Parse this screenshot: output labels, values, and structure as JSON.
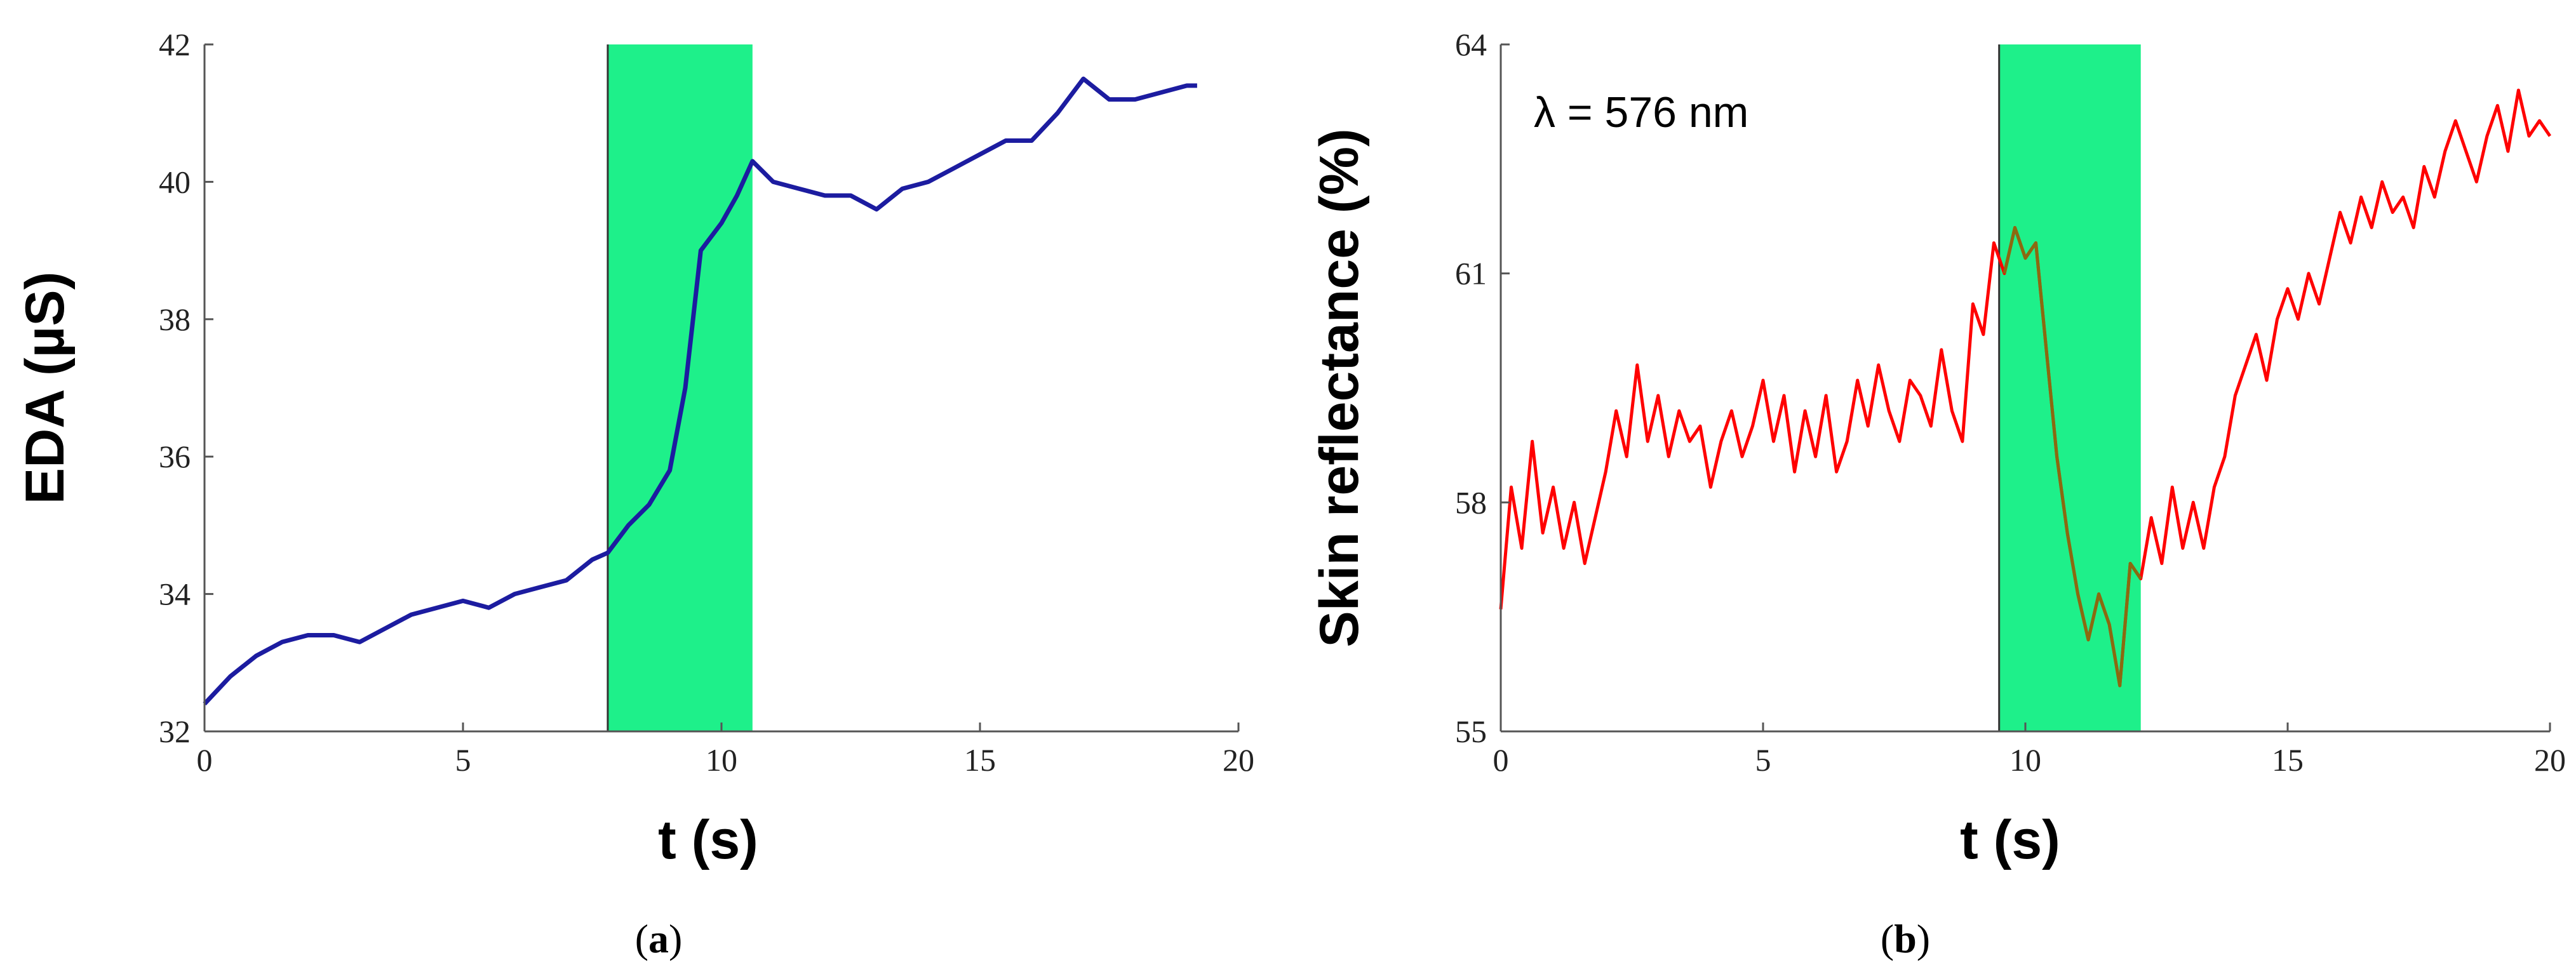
{
  "chart_data": [
    {
      "type": "line",
      "panel_label": "a",
      "xlabel": "t (s)",
      "ylabel": "EDA (µS)",
      "xlim": [
        0,
        20
      ],
      "ylim": [
        32,
        42
      ],
      "x_ticks": [
        "0",
        "5",
        "10",
        "15",
        "20"
      ],
      "y_ticks": [
        "32",
        "34",
        "36",
        "38",
        "40",
        "42"
      ],
      "grid": false,
      "highlight": {
        "x_start": 7.8,
        "x_end": 10.6,
        "color": "#1ef08a"
      },
      "series": [
        {
          "color": "#1c1ca0",
          "x": [
            0,
            0.5,
            1,
            1.5,
            2,
            2.5,
            3,
            3.5,
            4,
            4.5,
            5,
            5.5,
            6,
            6.5,
            7,
            7.5,
            7.8,
            8.2,
            8.6,
            9,
            9.3,
            9.6,
            10,
            10.3,
            10.6,
            11,
            11.5,
            12,
            12.5,
            13,
            13.5,
            14,
            14.5,
            15,
            15.5,
            16,
            16.5,
            17,
            17.5,
            18,
            18.5,
            19,
            19.2
          ],
          "y": [
            32.4,
            32.8,
            33.1,
            33.3,
            33.4,
            33.4,
            33.3,
            33.5,
            33.7,
            33.8,
            33.9,
            33.8,
            34.0,
            34.1,
            34.2,
            34.5,
            34.6,
            35.0,
            35.3,
            35.8,
            37.0,
            39.0,
            39.4,
            39.8,
            40.3,
            40.0,
            39.9,
            39.8,
            39.8,
            39.6,
            39.9,
            40.0,
            40.2,
            40.4,
            40.6,
            40.6,
            41.0,
            41.5,
            41.2,
            41.2,
            41.3,
            41.4,
            41.4
          ]
        }
      ]
    },
    {
      "type": "line",
      "panel_label": "b",
      "xlabel": "t (s)",
      "ylabel": "Skin reflectance (%)",
      "annotation": "λ = 576 nm",
      "xlim": [
        0,
        20
      ],
      "ylim": [
        55,
        64
      ],
      "x_ticks": [
        "0",
        "5",
        "10",
        "15",
        "20"
      ],
      "y_ticks": [
        "55",
        "58",
        "61",
        "64"
      ],
      "grid": false,
      "highlight": {
        "x_start": 9.5,
        "x_end": 12.2,
        "color": "#1ef08a"
      },
      "highlight_series_color": "#8a6a10",
      "series": [
        {
          "color": "#ff0000",
          "x": [
            0,
            0.2,
            0.4,
            0.6,
            0.8,
            1,
            1.2,
            1.4,
            1.6,
            1.8,
            2,
            2.2,
            2.4,
            2.6,
            2.8,
            3,
            3.2,
            3.4,
            3.6,
            3.8,
            4,
            4.2,
            4.4,
            4.6,
            4.8,
            5,
            5.2,
            5.4,
            5.6,
            5.8,
            6,
            6.2,
            6.4,
            6.6,
            6.8,
            7,
            7.2,
            7.4,
            7.6,
            7.8,
            8,
            8.2,
            8.4,
            8.6,
            8.8,
            9,
            9.2,
            9.4,
            9.6,
            9.8,
            10,
            10.2,
            10.4,
            10.6,
            10.8,
            11,
            11.2,
            11.4,
            11.6,
            11.8,
            12,
            12.2,
            12.4,
            12.6,
            12.8,
            13,
            13.2,
            13.4,
            13.6,
            13.8,
            14,
            14.2,
            14.4,
            14.6,
            14.8,
            15,
            15.2,
            15.4,
            15.6,
            15.8,
            16,
            16.2,
            16.4,
            16.6,
            16.8,
            17,
            17.2,
            17.4,
            17.6,
            17.8,
            18,
            18.2,
            18.4,
            18.6,
            18.8,
            19,
            19.2,
            19.4,
            19.6,
            19.8,
            20
          ],
          "y": [
            56.6,
            58.2,
            57.4,
            58.8,
            57.6,
            58.2,
            57.4,
            58.0,
            57.2,
            57.8,
            58.4,
            59.2,
            58.6,
            59.8,
            58.8,
            59.4,
            58.6,
            59.2,
            58.8,
            59.0,
            58.2,
            58.8,
            59.2,
            58.6,
            59.0,
            59.6,
            58.8,
            59.4,
            58.4,
            59.2,
            58.6,
            59.4,
            58.4,
            58.8,
            59.6,
            59.0,
            59.8,
            59.2,
            58.8,
            59.6,
            59.4,
            59.0,
            60.0,
            59.2,
            58.8,
            60.6,
            60.2,
            61.4,
            61.0,
            61.6,
            61.2,
            61.4,
            60.0,
            58.6,
            57.6,
            56.8,
            56.2,
            56.8,
            56.4,
            55.6,
            57.2,
            57.0,
            57.8,
            57.2,
            58.2,
            57.4,
            58.0,
            57.4,
            58.2,
            58.6,
            59.4,
            59.8,
            60.2,
            59.6,
            60.4,
            60.8,
            60.4,
            61.0,
            60.6,
            61.2,
            61.8,
            61.4,
            62.0,
            61.6,
            62.2,
            61.8,
            62.0,
            61.6,
            62.4,
            62.0,
            62.6,
            63.0,
            62.6,
            62.2,
            62.8,
            63.2,
            62.6,
            63.4,
            62.8,
            63.0,
            62.8
          ]
        }
      ]
    }
  ]
}
